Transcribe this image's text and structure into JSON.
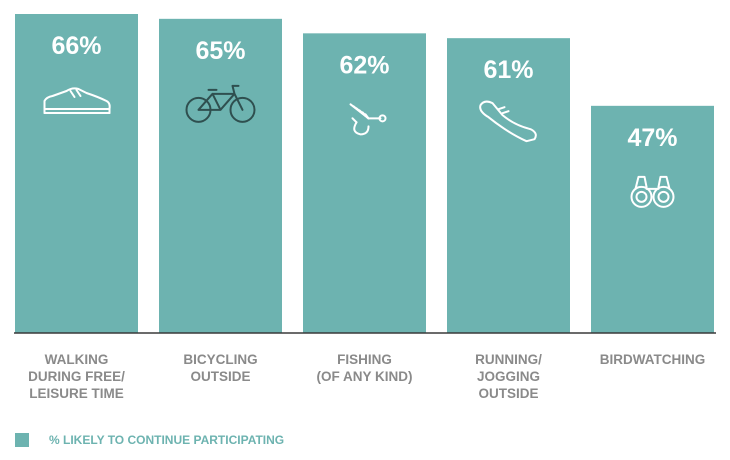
{
  "chart_data": {
    "type": "bar",
    "categories": [
      [
        "WALKING",
        "DURING FREE/",
        "LEISURE TIME"
      ],
      [
        "BICYCLING",
        "OUTSIDE"
      ],
      [
        "FISHING",
        "(OF ANY KIND)"
      ],
      [
        "RUNNING/",
        "JOGGING",
        "OUTSIDE"
      ],
      [
        "BIRDWATCHING"
      ]
    ],
    "values": [
      66,
      65,
      62,
      61,
      47
    ],
    "value_labels": [
      "66%",
      "65%",
      "62%",
      "61%",
      "47%"
    ],
    "icons": [
      "sneaker-icon",
      "bicycle-icon",
      "fishing-fly-icon",
      "running-shoe-icon",
      "binoculars-icon"
    ],
    "ylim": [
      0,
      66
    ],
    "grid": false,
    "legend": {
      "label": "% LIKELY TO CONTINUE PARTICIPATING",
      "placement": "bottom-left"
    },
    "colors": {
      "bar": "#6db3b0",
      "axis": "#3a3a3a",
      "category_text": "#8a8a8a",
      "legend_text": "#6db3b0"
    }
  }
}
